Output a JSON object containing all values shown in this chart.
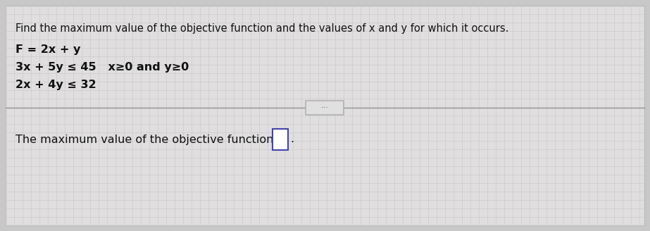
{
  "bg_color": "#c8c8c8",
  "panel_color": "#d8d8d8",
  "grid_color": "#cccccc",
  "title_line": "Find the maximum value of the objective function and the values of x and y for which it occurs.",
  "line1": "F = 2x + y",
  "line2": "3x + 5y ≤ 45   x≥0 and y≥0",
  "line3": "2x + 4y ≤ 32",
  "bottom_prefix": "The maximum value of the objective function is ",
  "text_color": "#111111",
  "divider_color": "#999999",
  "btn_bg": "#e0e0e0",
  "btn_border": "#aaaaaa",
  "box_fill": "#ffffff",
  "box_border": "#4444aa",
  "font_size_title": 10.5,
  "font_size_body": 11.5,
  "font_size_bottom": 11.5
}
